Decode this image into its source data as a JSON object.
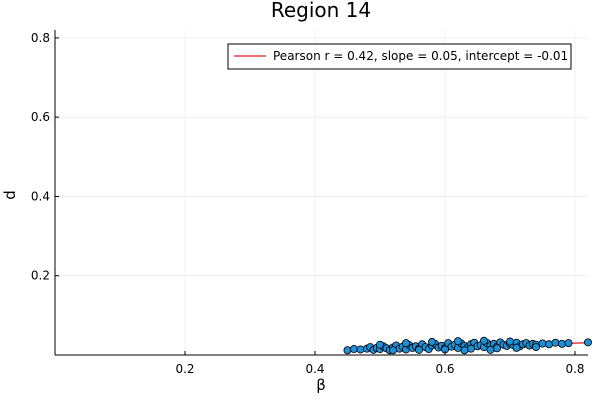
{
  "chart_data": {
    "type": "scatter",
    "title": "Region 14",
    "xlabel": "β",
    "ylabel": "d",
    "xlim": [
      0.0,
      0.82
    ],
    "ylim": [
      0.0,
      0.82
    ],
    "xticks": [
      0.2,
      0.4,
      0.6,
      0.8
    ],
    "xtick_labels": [
      "0.2",
      "0.4",
      "0.6",
      "0.8"
    ],
    "yticks": [
      0.2,
      0.4,
      0.6,
      0.8
    ],
    "ytick_labels": [
      "0.2",
      "0.4",
      "0.6",
      "0.8"
    ],
    "grid": true,
    "legend_position": "top-right",
    "legend_text": "Pearson r = 0.42, slope = 0.05, intercept = -0.01",
    "colors": {
      "points": "#1f8fd6",
      "fit_line": "#e31a1c"
    },
    "fit_line": {
      "slope": 0.05,
      "intercept": -0.01
    },
    "points": [
      [
        0.45,
        0.012
      ],
      [
        0.46,
        0.015
      ],
      [
        0.47,
        0.014
      ],
      [
        0.48,
        0.016
      ],
      [
        0.485,
        0.02
      ],
      [
        0.49,
        0.013
      ],
      [
        0.495,
        0.018
      ],
      [
        0.5,
        0.015
      ],
      [
        0.505,
        0.022
      ],
      [
        0.51,
        0.017
      ],
      [
        0.515,
        0.012
      ],
      [
        0.52,
        0.019
      ],
      [
        0.525,
        0.024
      ],
      [
        0.53,
        0.016
      ],
      [
        0.535,
        0.021
      ],
      [
        0.54,
        0.014
      ],
      [
        0.545,
        0.025
      ],
      [
        0.55,
        0.018
      ],
      [
        0.555,
        0.022
      ],
      [
        0.56,
        0.016
      ],
      [
        0.565,
        0.027
      ],
      [
        0.57,
        0.02
      ],
      [
        0.575,
        0.015
      ],
      [
        0.58,
        0.024
      ],
      [
        0.585,
        0.028
      ],
      [
        0.59,
        0.019
      ],
      [
        0.595,
        0.023
      ],
      [
        0.6,
        0.017
      ],
      [
        0.605,
        0.03
      ],
      [
        0.61,
        0.021
      ],
      [
        0.615,
        0.026
      ],
      [
        0.62,
        0.018
      ],
      [
        0.625,
        0.029
      ],
      [
        0.63,
        0.023
      ],
      [
        0.635,
        0.019
      ],
      [
        0.64,
        0.027
      ],
      [
        0.645,
        0.031
      ],
      [
        0.65,
        0.022
      ],
      [
        0.655,
        0.025
      ],
      [
        0.66,
        0.02
      ],
      [
        0.665,
        0.03
      ],
      [
        0.67,
        0.024
      ],
      [
        0.675,
        0.028
      ],
      [
        0.68,
        0.021
      ],
      [
        0.685,
        0.032
      ],
      [
        0.69,
        0.026
      ],
      [
        0.695,
        0.023
      ],
      [
        0.7,
        0.029
      ],
      [
        0.705,
        0.025
      ],
      [
        0.71,
        0.031
      ],
      [
        0.715,
        0.022
      ],
      [
        0.72,
        0.027
      ],
      [
        0.725,
        0.03
      ],
      [
        0.73,
        0.024
      ],
      [
        0.735,
        0.028
      ],
      [
        0.74,
        0.026
      ],
      [
        0.75,
        0.029
      ],
      [
        0.76,
        0.027
      ],
      [
        0.77,
        0.031
      ],
      [
        0.78,
        0.028
      ],
      [
        0.79,
        0.03
      ],
      [
        0.82,
        0.032
      ],
      [
        0.52,
        0.012
      ],
      [
        0.56,
        0.013
      ],
      [
        0.6,
        0.014
      ],
      [
        0.64,
        0.016
      ],
      [
        0.68,
        0.017
      ],
      [
        0.58,
        0.033
      ],
      [
        0.62,
        0.035
      ],
      [
        0.66,
        0.036
      ],
      [
        0.7,
        0.034
      ],
      [
        0.54,
        0.03
      ],
      [
        0.5,
        0.026
      ],
      [
        0.63,
        0.012
      ],
      [
        0.67,
        0.013
      ],
      [
        0.71,
        0.018
      ],
      [
        0.74,
        0.02
      ]
    ]
  }
}
